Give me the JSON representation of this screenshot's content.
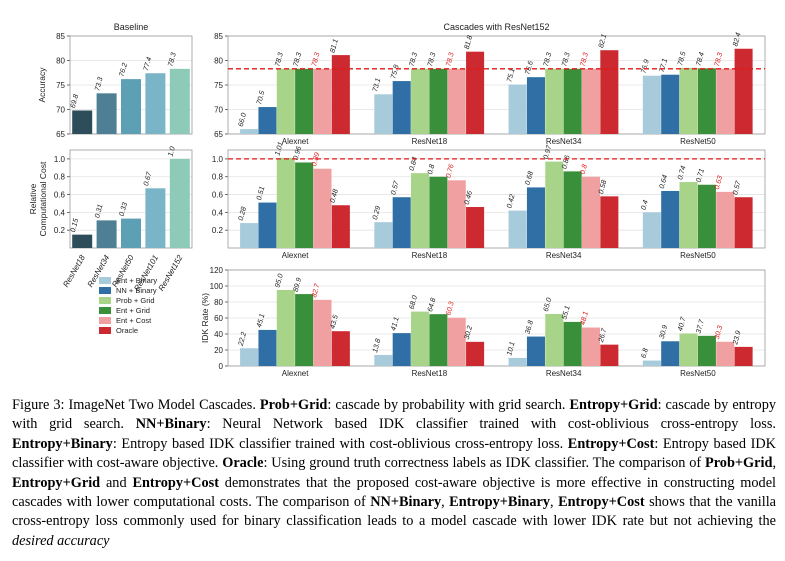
{
  "legend": [
    {
      "name": "Ent + Binary",
      "color": "#a8cbdc"
    },
    {
      "name": "NN + Binary",
      "color": "#2f6fa5"
    },
    {
      "name": "Prob + Grid",
      "color": "#a8d48a"
    },
    {
      "name": "Ent + Grid",
      "color": "#3a8f3a"
    },
    {
      "name": "Ent + Cost",
      "color": "#f0a0a0"
    },
    {
      "name": "Oracle",
      "color": "#cc2a30"
    }
  ],
  "chart_data": [
    {
      "id": "baseline-accuracy",
      "type": "bar",
      "title": "Baseline",
      "ylabel": "Accuracy",
      "ylim": [
        65,
        85
      ],
      "yticks": [
        65,
        70,
        75,
        80,
        85
      ],
      "categories": [
        "ResNet18",
        "ResNet34",
        "ResNet50",
        "ResNet101",
        "ResNet152"
      ],
      "values": [
        69.8,
        73.3,
        76.2,
        77.4,
        78.3
      ],
      "labels": [
        "69.8",
        "73.3",
        "76.2",
        "77.4",
        "78.3"
      ],
      "colors": [
        "#2e4d5a",
        "#4e7f95",
        "#5d9fb5",
        "#7ab4c7",
        "#8ecab8"
      ]
    },
    {
      "id": "baseline-cost",
      "type": "bar",
      "ylabel": "Relative Computational Cost",
      "ylim": [
        0,
        1.1
      ],
      "yticks": [
        0.2,
        0.4,
        0.6,
        0.8,
        1.0
      ],
      "ytick_labels": [
        "0.2",
        "0.4",
        "0.6",
        "0.8",
        "1.0"
      ],
      "categories": [
        "ResNet18",
        "ResNet34",
        "ResNet50",
        "ResNet101",
        "ResNet152"
      ],
      "values": [
        0.15,
        0.31,
        0.33,
        0.67,
        1.0
      ],
      "labels": [
        "0.15",
        "0.31",
        "0.33",
        "0.67",
        "1.0"
      ],
      "colors": [
        "#2e4d5a",
        "#4e7f95",
        "#5d9fb5",
        "#7ab4c7",
        "#8ecab8"
      ]
    },
    {
      "id": "cascade-accuracy",
      "type": "bar",
      "title": "Cascades with ResNet152",
      "ylim": [
        65,
        85
      ],
      "yticks": [
        65,
        70,
        75,
        80,
        85
      ],
      "reference_line": 78.3,
      "categories": [
        "Alexnet",
        "ResNet18",
        "ResNet34",
        "ResNet50"
      ],
      "series": [
        {
          "name": "Ent + Binary",
          "values": [
            66.0,
            73.1,
            75.1,
            76.9
          ],
          "labels": [
            "66.0",
            "73.1",
            "75.1",
            "76.9"
          ]
        },
        {
          "name": "NN + Binary",
          "values": [
            70.5,
            75.8,
            76.6,
            77.1
          ],
          "labels": [
            "70.5",
            "75.8",
            "76.6",
            "77.1"
          ]
        },
        {
          "name": "Prob + Grid",
          "values": [
            78.3,
            78.3,
            78.3,
            78.5
          ],
          "labels": [
            "78.3",
            "78.3",
            "78.3",
            "78.5"
          ]
        },
        {
          "name": "Ent + Grid",
          "values": [
            78.3,
            78.3,
            78.3,
            78.4
          ],
          "labels": [
            "78.3",
            "78.3",
            "78.3",
            "78.4"
          ]
        },
        {
          "name": "Ent + Cost",
          "values": [
            78.3,
            78.3,
            78.3,
            78.3
          ],
          "labels": [
            "78.3",
            "78.3",
            "78.3",
            "78.3"
          ]
        },
        {
          "name": "Oracle",
          "values": [
            81.1,
            81.8,
            82.1,
            82.4
          ],
          "labels": [
            "81.1",
            "81.8",
            "82.1",
            "82.4"
          ]
        }
      ]
    },
    {
      "id": "cascade-cost",
      "type": "bar",
      "ylim": [
        0,
        1.1
      ],
      "yticks": [
        0.2,
        0.4,
        0.6,
        0.8,
        1.0
      ],
      "ytick_labels": [
        "0.2",
        "0.4",
        "0.6",
        "0.8",
        "1.0"
      ],
      "reference_line": 1.0,
      "categories": [
        "Alexnet",
        "ResNet18",
        "ResNet34",
        "ResNet50"
      ],
      "series": [
        {
          "name": "Ent + Binary",
          "values": [
            0.28,
            0.29,
            0.42,
            0.4
          ],
          "labels": [
            "0.28",
            "0.29",
            "0.42",
            "0.4"
          ]
        },
        {
          "name": "NN + Binary",
          "values": [
            0.51,
            0.57,
            0.68,
            0.64
          ],
          "labels": [
            "0.51",
            "0.57",
            "0.68",
            "0.64"
          ]
        },
        {
          "name": "Prob + Grid",
          "values": [
            1.01,
            0.84,
            0.97,
            0.74
          ],
          "labels": [
            "1.01",
            "0.84",
            "0.97",
            "0.74"
          ]
        },
        {
          "name": "Ent + Grid",
          "values": [
            0.96,
            0.8,
            0.86,
            0.71
          ],
          "labels": [
            "0.96",
            "0.8",
            "0.86",
            "0.71"
          ]
        },
        {
          "name": "Ent + Cost",
          "values": [
            0.89,
            0.76,
            0.8,
            0.63
          ],
          "labels": [
            "0.89",
            "0.76",
            "0.8",
            "0.63"
          ]
        },
        {
          "name": "Oracle",
          "values": [
            0.48,
            0.46,
            0.58,
            0.57
          ],
          "labels": [
            "0.48",
            "0.46",
            "0.58",
            "0.57"
          ]
        }
      ]
    },
    {
      "id": "cascade-idk",
      "type": "bar",
      "ylabel": "IDK Rate (%)",
      "ylim": [
        0,
        120
      ],
      "yticks": [
        0,
        20,
        40,
        60,
        80,
        100,
        120
      ],
      "categories": [
        "Alexnet",
        "ResNet18",
        "ResNet34",
        "ResNet50"
      ],
      "series": [
        {
          "name": "Ent + Binary",
          "values": [
            22.2,
            13.8,
            10.1,
            6.8
          ],
          "labels": [
            "22.2",
            "13.8",
            "10.1",
            "6.8"
          ]
        },
        {
          "name": "NN + Binary",
          "values": [
            45.1,
            41.1,
            36.8,
            30.9
          ],
          "labels": [
            "45.1",
            "41.1",
            "36.8",
            "30.9"
          ]
        },
        {
          "name": "Prob + Grid",
          "values": [
            95.0,
            68.0,
            65.0,
            40.7
          ],
          "labels": [
            "95.0",
            "68.0",
            "65.0",
            "40.7"
          ]
        },
        {
          "name": "Ent + Grid",
          "values": [
            89.9,
            64.8,
            55.1,
            37.7
          ],
          "labels": [
            "89.9",
            "64.8",
            "55.1",
            "37.7"
          ]
        },
        {
          "name": "Ent + Cost",
          "values": [
            82.7,
            60.3,
            48.1,
            30.3
          ],
          "labels": [
            "82.7",
            "60.3",
            "48.1",
            "30.3"
          ]
        },
        {
          "name": "Oracle",
          "values": [
            43.5,
            30.2,
            26.7,
            23.9
          ],
          "labels": [
            "43.5",
            "30.2",
            "26.7",
            "23.9"
          ]
        }
      ]
    }
  ],
  "caption": {
    "lead": "Figure 3: ImageNet Two Model Cascades.",
    "t1": "Prob+Grid",
    "t1d": ": cascade by probability with grid search.",
    "t2": "Entropy+Grid",
    "t2d": ": cascade by entropy with grid search.",
    "t3": "NN+Binary",
    "t3d": ": Neural Network based IDK classifier trained with cost-oblivious cross-entropy loss.",
    "t4": "Entropy+Binary",
    "t4d": ": Entropy based IDK classifier trained with cost-oblivious cross-entropy loss.",
    "t5": "Entropy+Cost",
    "t5d": ": Entropy based IDK classifier with cost-aware objective.",
    "t6": "Oracle",
    "t6d": ": Using ground truth correctness labels as IDK classifier. The comparison of",
    "c1": "Prob+Grid",
    "c1s": ",",
    "c2": "Entropy+Grid",
    "c2s": "and",
    "c3": "Entropy+Cost",
    "c3d": "demonstrates that the proposed cost-aware objective is more effective in constructing model cascades with lower computational costs. The comparison of",
    "d1": "NN+Binary",
    "d1s": ",",
    "d2": "Entropy+Binary",
    "d2s": ",",
    "d3": "Entropy+Cost",
    "d3d": "shows that the vanilla cross-entropy loss commonly used for binary classification leads to a model cascade with lower IDK rate but not achieving the",
    "em": "desired accuracy"
  }
}
